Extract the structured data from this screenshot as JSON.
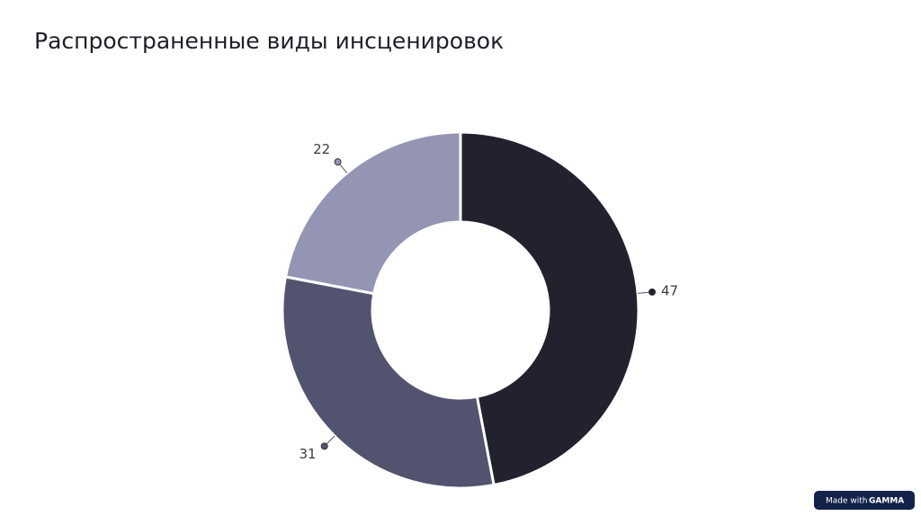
{
  "chart_data": {
    "type": "pie",
    "title": "Распространенные виды инсценировок",
    "values": [
      47,
      31,
      22
    ],
    "colors": [
      "#22212e",
      "#52536f",
      "#9495b3"
    ],
    "donut": true
  },
  "badge": {
    "text": "Made with",
    "brand": "GAMMA"
  }
}
